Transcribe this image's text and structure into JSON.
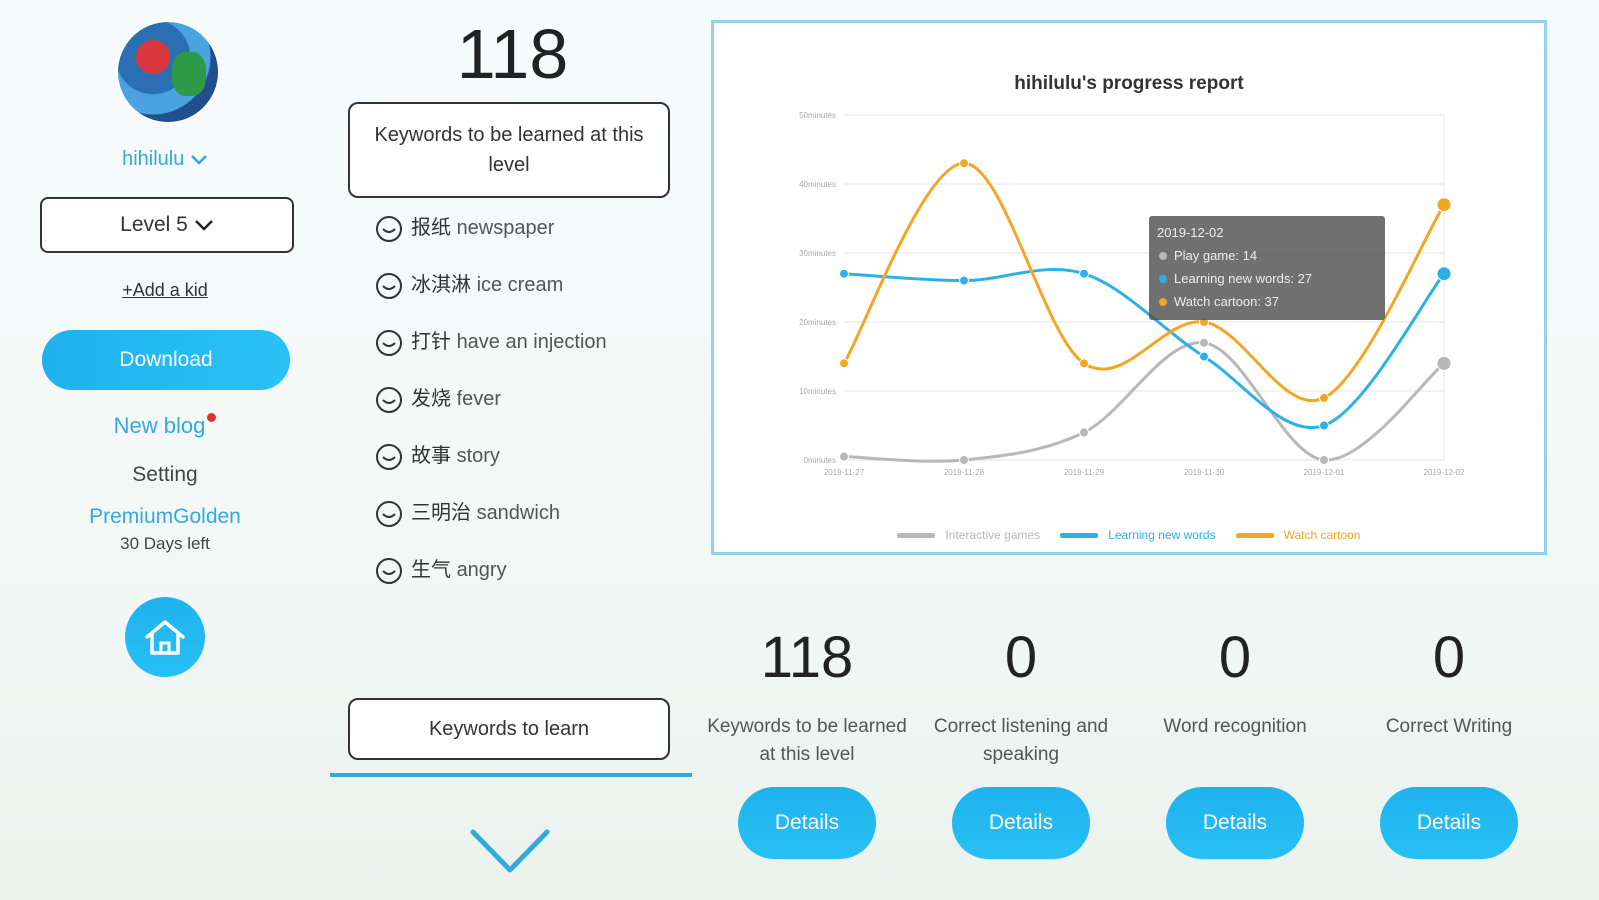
{
  "sidebar": {
    "username": "hihilulu",
    "level": "Level 5",
    "add_kid": "+Add a kid",
    "download": "Download",
    "new_blog": "New blog",
    "setting": "Setting",
    "premium": "PremiumGolden",
    "days_left": "30 Days left"
  },
  "keywords": {
    "count": "118",
    "header": "Keywords to be learned at this level",
    "items": [
      {
        "zh": "报纸",
        "en": "newspaper"
      },
      {
        "zh": "冰淇淋",
        "en": "ice cream"
      },
      {
        "zh": "打针",
        "en": "have an injection"
      },
      {
        "zh": "发烧",
        "en": "fever"
      },
      {
        "zh": "故事",
        "en": "story"
      },
      {
        "zh": "三明治",
        "en": "sandwich"
      },
      {
        "zh": "生气",
        "en": "angry"
      }
    ],
    "learn_button": "Keywords to learn"
  },
  "chart_data": {
    "type": "line",
    "title": "hihilulu's progress report",
    "x": [
      "2019-11-27",
      "2019-11-28",
      "2019-11-29",
      "2019-11-30",
      "2019-12-01",
      "2019-12-02"
    ],
    "ylim": [
      0,
      50
    ],
    "yticks": [
      "0minutes",
      "10minutes",
      "20minutes",
      "30minutes",
      "40minutes",
      "50minutes"
    ],
    "series": [
      {
        "name": "Interactive games",
        "color": "#b8b8b8",
        "values": [
          0.5,
          0,
          4,
          17,
          0,
          14
        ]
      },
      {
        "name": "Learning new words",
        "color": "#2bb0e8",
        "values": [
          27,
          26,
          27,
          15,
          5,
          27
        ]
      },
      {
        "name": "Watch cartoon",
        "color": "#f3a623",
        "values": [
          14,
          43,
          14,
          20,
          9,
          37
        ]
      }
    ],
    "tooltip": {
      "date": "2019-12-02",
      "lines": [
        "Play game: 14",
        "Learning new words: 27",
        "Watch cartoon: 37"
      ]
    },
    "grid": true,
    "legend": "bottom"
  },
  "stats": [
    {
      "value": "118",
      "label": "Keywords to be learned at this level",
      "button": "Details"
    },
    {
      "value": "0",
      "label": "Correct listening and speaking",
      "button": "Details"
    },
    {
      "value": "0",
      "label": "Word recognition",
      "button": "Details"
    },
    {
      "value": "0",
      "label": "Correct Writing",
      "button": "Details"
    }
  ]
}
